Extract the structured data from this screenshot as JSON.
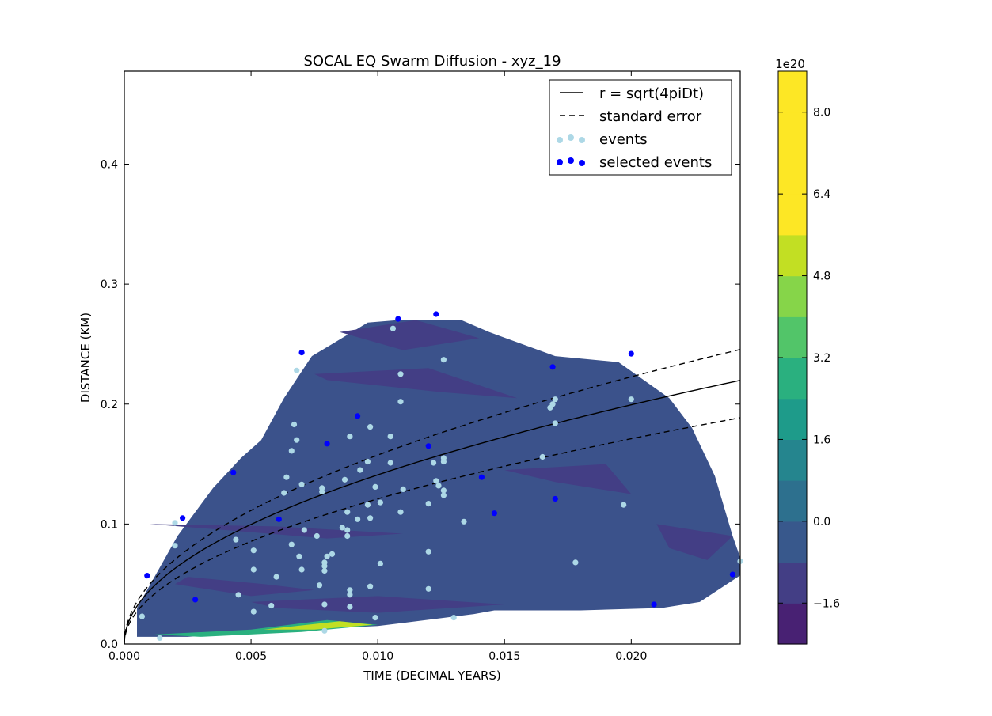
{
  "chart_data": {
    "type": "scatter",
    "title": "SOCAL EQ Swarm Diffusion - xyz_19",
    "xlabel": "TIME (DECIMAL YEARS)",
    "ylabel": "DISTANCE (KM)",
    "xlim": [
      0,
      0.0243
    ],
    "ylim": [
      0,
      0.4775
    ],
    "x_ticks": [
      "0.000",
      "0.005",
      "0.010",
      "0.015",
      "0.020"
    ],
    "x_tick_values": [
      0,
      0.005,
      0.01,
      0.015,
      0.02
    ],
    "y_ticks": [
      "0.0",
      "0.1",
      "0.2",
      "0.3",
      "0.4"
    ],
    "y_tick_values": [
      0,
      0.1,
      0.2,
      0.3,
      0.4
    ],
    "legend": {
      "position": "top-right",
      "entries": [
        "r = sqrt(4piDt)",
        "standard error",
        "events",
        "selected events"
      ]
    },
    "colors": {
      "fit_line": "#000000",
      "events": "#add8e6",
      "selected_events": "#0000ff",
      "contour_base": "#3b528b"
    },
    "fit": {
      "name": "r = sqrt(4piDt)",
      "coefficient": 1.41,
      "lower_coefficient": 1.21,
      "upper_coefficient": 1.575
    },
    "colorbar": {
      "offset_label": "1e20",
      "range": [
        -2.4,
        8.8
      ],
      "tick_values": [
        -1.6,
        0.0,
        1.6,
        3.2,
        4.8,
        6.4,
        8.0
      ],
      "tick_labels": [
        "−1.6",
        "0.0",
        "1.6",
        "3.2",
        "4.8",
        "6.4",
        "8.0"
      ],
      "levels": [
        -2.4,
        -1.6,
        -0.8,
        0.0,
        0.8,
        1.6,
        2.4,
        3.2,
        4.0,
        4.8,
        5.6,
        6.4,
        7.2,
        8.0,
        8.8
      ],
      "colors": [
        "#482173",
        "#433e85",
        "#38588c",
        "#2d708e",
        "#25858e",
        "#1e9b8a",
        "#2ab07f",
        "#52c569",
        "#86d549",
        "#c2df23",
        "#fde725",
        "#fde725",
        "#fde725",
        "#fde725"
      ]
    },
    "contour": {
      "envelope_top": [
        [
          0.0005,
          0.03
        ],
        [
          0.0013,
          0.06
        ],
        [
          0.0021,
          0.09
        ],
        [
          0.0028,
          0.11
        ],
        [
          0.0035,
          0.13
        ],
        [
          0.0046,
          0.155
        ],
        [
          0.0054,
          0.17
        ],
        [
          0.0063,
          0.205
        ],
        [
          0.0074,
          0.24
        ],
        [
          0.0082,
          0.25
        ],
        [
          0.0096,
          0.268
        ],
        [
          0.0108,
          0.27
        ],
        [
          0.0133,
          0.27
        ],
        [
          0.0144,
          0.26
        ],
        [
          0.017,
          0.24
        ],
        [
          0.0195,
          0.235
        ],
        [
          0.0215,
          0.205
        ],
        [
          0.0224,
          0.18
        ],
        [
          0.0233,
          0.14
        ],
        [
          0.024,
          0.09
        ],
        [
          0.0245,
          0.06
        ]
      ],
      "envelope_bottom": [
        [
          0.0245,
          0.06
        ],
        [
          0.0227,
          0.035
        ],
        [
          0.0212,
          0.03
        ],
        [
          0.018,
          0.028
        ],
        [
          0.0146,
          0.028
        ],
        [
          0.0138,
          0.025
        ],
        [
          0.01,
          0.015
        ],
        [
          0.007,
          0.012
        ],
        [
          0.004,
          0.008
        ],
        [
          0.0025,
          0.006
        ],
        [
          0.0005,
          0.006
        ]
      ],
      "darker_bands": [
        [
          [
            0.0075,
            0.225
          ],
          [
            0.012,
            0.23
          ],
          [
            0.0155,
            0.205
          ],
          [
            0.0125,
            0.21
          ],
          [
            0.008,
            0.22
          ]
        ],
        [
          [
            0.001,
            0.1
          ],
          [
            0.004,
            0.095
          ],
          [
            0.008,
            0.088
          ],
          [
            0.011,
            0.092
          ],
          [
            0.006,
            0.098
          ]
        ],
        [
          [
            0.0025,
            0.056
          ],
          [
            0.0055,
            0.05
          ],
          [
            0.0075,
            0.045
          ],
          [
            0.005,
            0.04
          ],
          [
            0.002,
            0.05
          ]
        ],
        [
          [
            0.005,
            0.035
          ],
          [
            0.01,
            0.04
          ],
          [
            0.015,
            0.033
          ],
          [
            0.01,
            0.026
          ],
          [
            0.006,
            0.03
          ]
        ],
        [
          [
            0.015,
            0.145
          ],
          [
            0.019,
            0.15
          ],
          [
            0.02,
            0.125
          ],
          [
            0.017,
            0.135
          ]
        ],
        [
          [
            0.0085,
            0.26
          ],
          [
            0.0115,
            0.27
          ],
          [
            0.014,
            0.255
          ],
          [
            0.011,
            0.245
          ]
        ],
        [
          [
            0.021,
            0.1
          ],
          [
            0.024,
            0.09
          ],
          [
            0.023,
            0.07
          ],
          [
            0.0215,
            0.08
          ]
        ]
      ],
      "hot_zone": [
        [
          0.0012,
          0.008
        ],
        [
          0.005,
          0.012
        ],
        [
          0.008,
          0.02
        ],
        [
          0.01,
          0.016
        ],
        [
          0.007,
          0.01
        ],
        [
          0.003,
          0.006
        ]
      ]
    },
    "events": [
      [
        0.0007,
        0.023
      ],
      [
        0.0014,
        0.005
      ],
      [
        0.002,
        0.082
      ],
      [
        0.002,
        0.101
      ],
      [
        0.0044,
        0.087
      ],
      [
        0.0045,
        0.041
      ],
      [
        0.0051,
        0.078
      ],
      [
        0.0051,
        0.062
      ],
      [
        0.0051,
        0.027
      ],
      [
        0.0058,
        0.032
      ],
      [
        0.006,
        0.056
      ],
      [
        0.0063,
        0.126
      ],
      [
        0.0064,
        0.139
      ],
      [
        0.0066,
        0.083
      ],
      [
        0.0066,
        0.161
      ],
      [
        0.0067,
        0.183
      ],
      [
        0.0068,
        0.17
      ],
      [
        0.0068,
        0.228
      ],
      [
        0.0069,
        0.073
      ],
      [
        0.007,
        0.133
      ],
      [
        0.007,
        0.062
      ],
      [
        0.0071,
        0.095
      ],
      [
        0.0076,
        0.09
      ],
      [
        0.0077,
        0.049
      ],
      [
        0.0078,
        0.13
      ],
      [
        0.0078,
        0.127
      ],
      [
        0.0079,
        0.068
      ],
      [
        0.0079,
        0.065
      ],
      [
        0.0079,
        0.061
      ],
      [
        0.0079,
        0.033
      ],
      [
        0.0079,
        0.011
      ],
      [
        0.008,
        0.073
      ],
      [
        0.0082,
        0.075
      ],
      [
        0.0087,
        0.137
      ],
      [
        0.0086,
        0.097
      ],
      [
        0.0088,
        0.11
      ],
      [
        0.0088,
        0.095
      ],
      [
        0.0088,
        0.09
      ],
      [
        0.0089,
        0.173
      ],
      [
        0.0089,
        0.045
      ],
      [
        0.0089,
        0.041
      ],
      [
        0.0089,
        0.031
      ],
      [
        0.0092,
        0.104
      ],
      [
        0.0093,
        0.145
      ],
      [
        0.0096,
        0.152
      ],
      [
        0.0096,
        0.116
      ],
      [
        0.0097,
        0.181
      ],
      [
        0.0097,
        0.105
      ],
      [
        0.0097,
        0.048
      ],
      [
        0.0099,
        0.131
      ],
      [
        0.0099,
        0.022
      ],
      [
        0.0101,
        0.118
      ],
      [
        0.0101,
        0.067
      ],
      [
        0.0105,
        0.173
      ],
      [
        0.0105,
        0.151
      ],
      [
        0.0106,
        0.263
      ],
      [
        0.0109,
        0.225
      ],
      [
        0.0109,
        0.202
      ],
      [
        0.0109,
        0.11
      ],
      [
        0.011,
        0.129
      ],
      [
        0.012,
        0.117
      ],
      [
        0.012,
        0.077
      ],
      [
        0.012,
        0.046
      ],
      [
        0.0122,
        0.151
      ],
      [
        0.0123,
        0.136
      ],
      [
        0.0124,
        0.132
      ],
      [
        0.0126,
        0.237
      ],
      [
        0.0126,
        0.155
      ],
      [
        0.0126,
        0.152
      ],
      [
        0.0126,
        0.128
      ],
      [
        0.0126,
        0.124
      ],
      [
        0.013,
        0.022
      ],
      [
        0.0134,
        0.102
      ],
      [
        0.0165,
        0.156
      ],
      [
        0.0168,
        0.197
      ],
      [
        0.0169,
        0.2
      ],
      [
        0.017,
        0.204
      ],
      [
        0.017,
        0.184
      ],
      [
        0.0178,
        0.068
      ],
      [
        0.0197,
        0.116
      ],
      [
        0.02,
        0.204
      ],
      [
        0.0243,
        0.069
      ]
    ],
    "selected_events": [
      [
        0.0009,
        0.057
      ],
      [
        0.0023,
        0.105
      ],
      [
        0.0028,
        0.037
      ],
      [
        0.0043,
        0.143
      ],
      [
        0.0061,
        0.104
      ],
      [
        0.007,
        0.243
      ],
      [
        0.008,
        0.167
      ],
      [
        0.0092,
        0.19
      ],
      [
        0.0108,
        0.271
      ],
      [
        0.012,
        0.165
      ],
      [
        0.0123,
        0.275
      ],
      [
        0.0141,
        0.139
      ],
      [
        0.0146,
        0.109
      ],
      [
        0.0169,
        0.231
      ],
      [
        0.017,
        0.121
      ],
      [
        0.02,
        0.242
      ],
      [
        0.0209,
        0.033
      ],
      [
        0.024,
        0.058
      ]
    ]
  }
}
